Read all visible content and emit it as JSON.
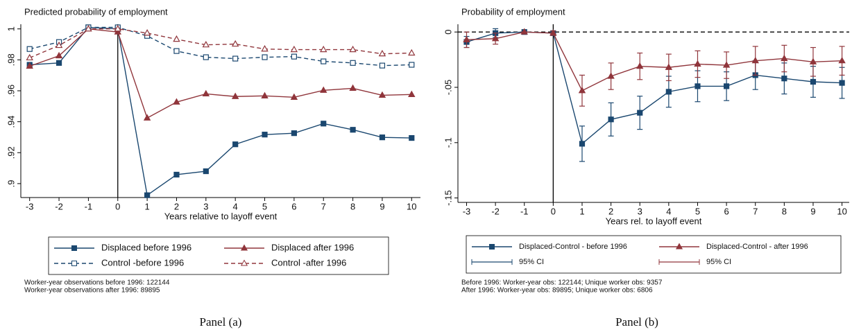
{
  "chart_data": [
    {
      "type": "line",
      "title": "Predicted probability of employment",
      "x_label": "Years relative to layoff event",
      "x": [
        -3,
        -2,
        -1,
        0,
        1,
        2,
        3,
        4,
        5,
        6,
        7,
        8,
        9,
        10
      ],
      "xlim": [
        -3.3,
        10.3
      ],
      "xticks": [
        -3,
        -2,
        -1,
        0,
        1,
        2,
        3,
        4,
        5,
        6,
        7,
        8,
        9,
        10
      ],
      "ylim": [
        0.891,
        1.003
      ],
      "yticks": [
        {
          "value": 0.9,
          "label": ".9"
        },
        {
          "value": 0.92,
          "label": ".92"
        },
        {
          "value": 0.94,
          "label": ".94"
        },
        {
          "value": 0.96,
          "label": ".96"
        },
        {
          "value": 0.98,
          "label": ".98"
        },
        1
      ],
      "vline": 0,
      "series": [
        {
          "name": "Displaced before 1996",
          "color": "#1a476f",
          "marker": "square",
          "filled": true,
          "dashed": false,
          "values": [
            0.9768,
            0.978,
            1.001,
            1.0,
            0.8925,
            0.9058,
            0.908,
            0.9254,
            0.9317,
            0.9326,
            0.9388,
            0.9348,
            0.9299,
            0.9295
          ]
        },
        {
          "name": "Displaced after 1996",
          "color": "#90353b",
          "marker": "triangle",
          "filled": true,
          "dashed": false,
          "values": [
            0.9759,
            0.9826,
            1.0,
            0.998,
            0.9424,
            0.9527,
            0.958,
            0.9563,
            0.9567,
            0.9558,
            0.9603,
            0.9616,
            0.9571,
            0.9576
          ]
        },
        {
          "name": "Control -before 1996",
          "color": "#1a476f",
          "marker": "square",
          "filled": false,
          "dashed": true,
          "values": [
            0.987,
            0.9915,
            1.001,
            1.001,
            0.9955,
            0.9857,
            0.9817,
            0.9808,
            0.9817,
            0.9821,
            0.979,
            0.978,
            0.9763,
            0.9768
          ]
        },
        {
          "name": "Control -after 1996",
          "color": "#90353b",
          "marker": "triangle",
          "filled": false,
          "dashed": true,
          "values": [
            0.9813,
            0.9893,
            1.0,
            1.0,
            0.9973,
            0.9933,
            0.9897,
            0.9902,
            0.987,
            0.9866,
            0.9866,
            0.9866,
            0.9839,
            0.9844
          ]
        }
      ],
      "notes": [
        "Worker-year observations before 1996: 122144",
        "Worker-year observations after 1996: 89895"
      ],
      "caption": "Panel (a)"
    },
    {
      "type": "line",
      "title": "Probability of employment",
      "x_label": "Years rel. to layoff event",
      "x": [
        -3,
        -2,
        -1,
        0,
        1,
        2,
        3,
        4,
        5,
        6,
        7,
        8,
        9,
        10
      ],
      "xlim": [
        -3.3,
        10.25
      ],
      "xticks": [
        -3,
        -2,
        -1,
        0,
        1,
        2,
        3,
        4,
        5,
        6,
        7,
        8,
        9,
        10
      ],
      "ylim": [
        -0.154,
        0.007
      ],
      "yticks": [
        {
          "value": -0.15,
          "label": "-.15"
        },
        {
          "value": -0.1,
          "label": "-.1"
        },
        {
          "value": -0.05,
          "label": "-.05"
        },
        0
      ],
      "vline": 0,
      "hline": 0,
      "series": [
        {
          "name": "Displaced-Control - before 1996",
          "color": "#1a476f",
          "marker": "square",
          "filled": true,
          "dashed": false,
          "values": [
            -0.009,
            -0.001,
            0,
            -0.001,
            -0.101,
            -0.079,
            -0.073,
            -0.054,
            -0.049,
            -0.049,
            -0.039,
            -0.042,
            -0.045,
            -0.046
          ],
          "error_name": "95% CI",
          "errors": [
            0.005,
            0.004,
            0,
            0.002,
            0.016,
            0.015,
            0.015,
            0.014,
            0.014,
            0.013,
            0.013,
            0.014,
            0.014,
            0.014
          ]
        },
        {
          "name": "Displaced-Control - after 1996",
          "color": "#90353b",
          "marker": "triangle",
          "filled": true,
          "dashed": false,
          "values": [
            -0.007,
            -0.006,
            0,
            -0.001,
            -0.053,
            -0.04,
            -0.031,
            -0.032,
            -0.029,
            -0.03,
            -0.026,
            -0.024,
            -0.027,
            -0.026
          ],
          "error_name": "95% CI",
          "errors": [
            0.007,
            0.005,
            0,
            0.002,
            0.014,
            0.012,
            0.012,
            0.012,
            0.012,
            0.012,
            0.013,
            0.012,
            0.013,
            0.013
          ]
        }
      ],
      "notes": [
        "Before 1996: Worker-year obs: 122144; Unique worker obs: 9357",
        "After 1996: Worker-year obs: 89895; Unique worker obs: 6806"
      ],
      "caption": "Panel (b)"
    }
  ]
}
